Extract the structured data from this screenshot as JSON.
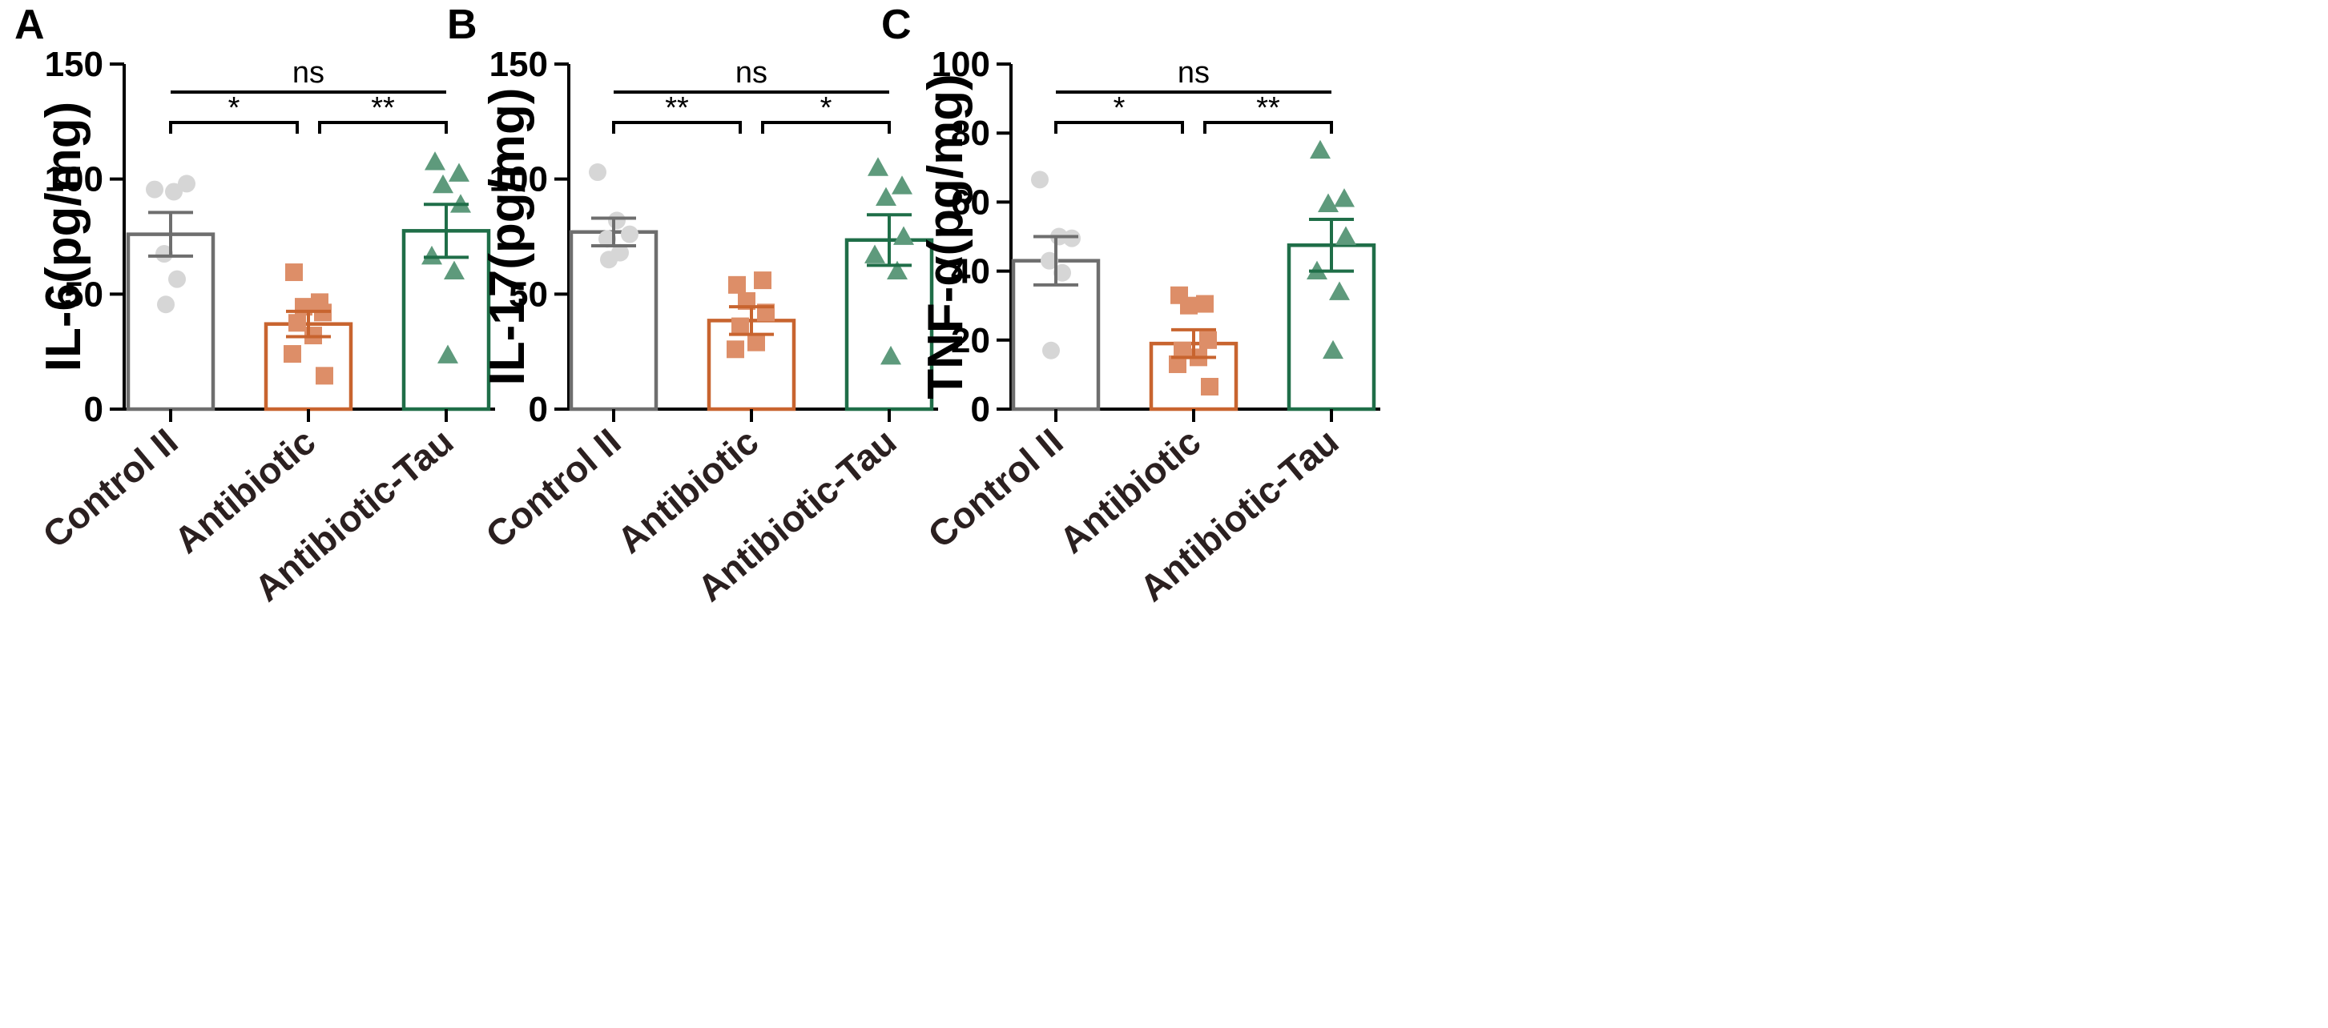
{
  "colors": {
    "control": "#6e6e6e",
    "control_points": "#d6d6d6",
    "antibiotic": "#c8642f",
    "antibiotic_points": "#dd8e68",
    "antibiotic_tau": "#1f6e48",
    "antibiotic_tau_points": "#5e9a7c",
    "axis": "#000000"
  },
  "chart_data": [
    {
      "type": "bar",
      "panel": "A",
      "ylabel": "IL-6(pg/mg)",
      "ylim": [
        0,
        150
      ],
      "yticks": [
        "0",
        "50",
        "100",
        "150"
      ],
      "categories": [
        "Control II",
        "Antibiotic",
        "Antibiotic-Tau"
      ],
      "values": [
        76,
        37,
        77.5
      ],
      "sem": [
        9.5,
        5.5,
        11.5
      ],
      "points": [
        [
          95.5,
          94.5,
          98,
          67.5,
          56.5,
          45.5
        ],
        [
          59.5,
          46.5,
          44.5,
          42,
          37.5,
          32,
          24,
          14.5
        ],
        [
          107.5,
          102.5,
          97.5,
          89,
          66.5,
          60,
          23.5
        ]
      ],
      "markers": [
        "circle",
        "square",
        "triangle"
      ],
      "comparisons": [
        {
          "from": 0,
          "to": 1,
          "label": "*"
        },
        {
          "from": 1,
          "to": 2,
          "label": "**"
        },
        {
          "from": 0,
          "to": 2,
          "label": "ns"
        }
      ]
    },
    {
      "type": "bar",
      "panel": "B",
      "ylabel": "IL-17(pg/mg)",
      "ylim": [
        0,
        150
      ],
      "yticks": [
        "0",
        "50",
        "100",
        "150"
      ],
      "categories": [
        "Control II",
        "Antibiotic",
        "Antibiotic-Tau"
      ],
      "values": [
        77,
        38.5,
        73.5
      ],
      "sem": [
        6,
        6,
        11
      ],
      "points": [
        [
          103,
          82,
          76,
          74,
          68,
          65
        ],
        [
          54,
          56,
          47,
          42,
          36,
          29,
          26
        ],
        [
          105,
          97,
          92,
          75,
          67,
          60,
          23
        ]
      ],
      "markers": [
        "circle",
        "square",
        "triangle"
      ],
      "comparisons": [
        {
          "from": 0,
          "to": 1,
          "label": "**"
        },
        {
          "from": 1,
          "to": 2,
          "label": "*"
        },
        {
          "from": 0,
          "to": 2,
          "label": "ns"
        }
      ]
    },
    {
      "type": "bar",
      "panel": "C",
      "ylabel": "TNF-α(pg/mg)",
      "ylim": [
        0,
        100
      ],
      "yticks": [
        "0",
        "20",
        "40",
        "60",
        "80",
        "100"
      ],
      "categories": [
        "Control II",
        "Antibiotic",
        "Antibiotic-Tau"
      ],
      "values": [
        43,
        19,
        47.5
      ],
      "sem": [
        7,
        4,
        7.5
      ],
      "points": [
        [
          66.5,
          50,
          49.5,
          43,
          39.5,
          17
        ],
        [
          33,
          30.5,
          30,
          20,
          17,
          15,
          13,
          6.5
        ],
        [
          75,
          61,
          59.5,
          50,
          40,
          34,
          17
        ]
      ],
      "markers": [
        "circle",
        "square",
        "triangle"
      ],
      "comparisons": [
        {
          "from": 0,
          "to": 1,
          "label": "*"
        },
        {
          "from": 1,
          "to": 2,
          "label": "**"
        },
        {
          "from": 0,
          "to": 2,
          "label": "ns"
        }
      ]
    }
  ]
}
